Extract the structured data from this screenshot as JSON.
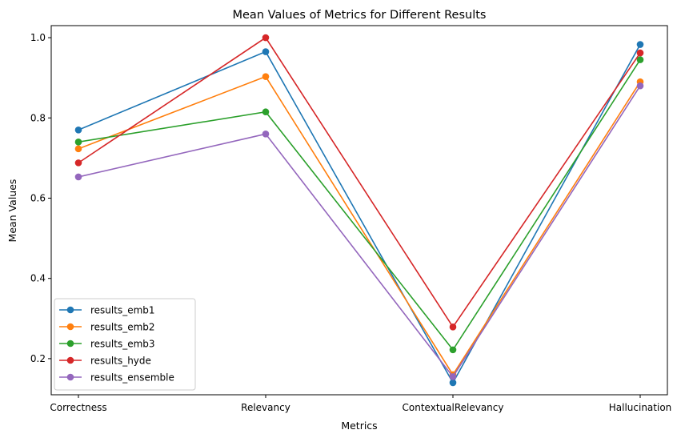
{
  "chart_data": {
    "type": "line",
    "title": "Mean Values of Metrics for Different Results",
    "xlabel": "Metrics",
    "ylabel": "Mean Values",
    "categories": [
      "Correctness",
      "Relevancy",
      "ContextualRelevancy",
      "Hallucination"
    ],
    "ylim": [
      0.11,
      1.03
    ],
    "yticks": [
      0.2,
      0.4,
      0.6,
      0.8,
      1.0
    ],
    "ytick_labels": [
      "0.2",
      "0.4",
      "0.6",
      "0.8",
      "1.0"
    ],
    "grid": false,
    "legend_position": "lower-left",
    "series": [
      {
        "name": "results_emb1",
        "color": "#1f77b4",
        "values": [
          0.77,
          0.965,
          0.14,
          0.983
        ]
      },
      {
        "name": "results_emb2",
        "color": "#ff7f0e",
        "values": [
          0.723,
          0.903,
          0.16,
          0.89
        ]
      },
      {
        "name": "results_emb3",
        "color": "#2ca02c",
        "values": [
          0.74,
          0.815,
          0.222,
          0.945
        ]
      },
      {
        "name": "results_hyde",
        "color": "#d62728",
        "values": [
          0.688,
          1.0,
          0.279,
          0.962
        ]
      },
      {
        "name": "results_ensemble",
        "color": "#9467bd",
        "values": [
          0.653,
          0.76,
          0.155,
          0.88
        ]
      }
    ]
  }
}
